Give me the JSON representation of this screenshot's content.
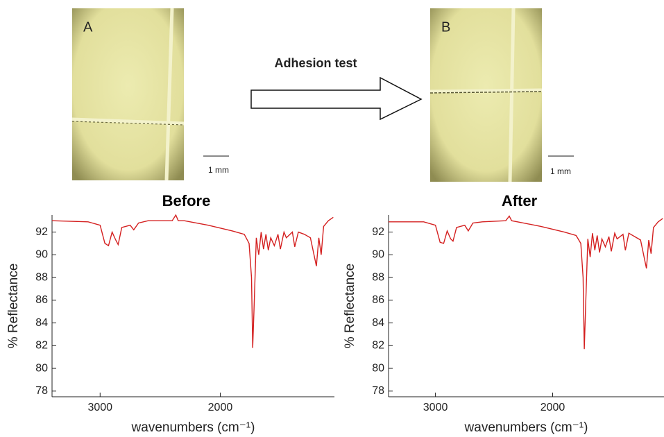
{
  "figure": {
    "panel_a_label": "A",
    "panel_b_label": "B",
    "scale_bar_a": "1 mm",
    "scale_bar_b": "1 mm",
    "arrow_label": "Adhesion test"
  },
  "chart_data": [
    {
      "type": "line",
      "title": "Before",
      "x_label": "wavenumbers (cm⁻¹)",
      "y_label": "% Reflectance",
      "x": [
        3400,
        3100,
        3000,
        2960,
        2930,
        2900,
        2870,
        2850,
        2820,
        2750,
        2720,
        2680,
        2600,
        2400,
        2370,
        2350,
        2300,
        2100,
        1900,
        1800,
        1760,
        1740,
        1730,
        1720,
        1700,
        1680,
        1660,
        1640,
        1620,
        1600,
        1580,
        1550,
        1520,
        1500,
        1470,
        1450,
        1400,
        1380,
        1350,
        1300,
        1250,
        1200,
        1180,
        1160,
        1140,
        1100,
        1060
      ],
      "series": [
        {
          "name": "Before",
          "color": "#d42020",
          "values": [
            93.0,
            92.9,
            92.6,
            91.0,
            90.8,
            92.0,
            91.3,
            90.9,
            92.4,
            92.6,
            92.2,
            92.8,
            93.0,
            93.0,
            93.5,
            93.0,
            93.0,
            92.6,
            92.1,
            91.8,
            91.0,
            88.0,
            81.8,
            85.0,
            91.5,
            90.0,
            92.0,
            90.5,
            91.8,
            90.4,
            91.5,
            90.8,
            91.8,
            90.5,
            92.0,
            91.5,
            92.0,
            90.7,
            92.0,
            91.8,
            91.5,
            89.0,
            91.5,
            90.0,
            92.5,
            93.0,
            93.3
          ]
        }
      ],
      "xlim": [
        3400,
        1050
      ],
      "ylim": [
        77.5,
        93.5
      ],
      "xticks": [
        3000,
        2000
      ],
      "yticks": [
        78,
        80,
        82,
        84,
        86,
        88,
        90,
        92
      ]
    },
    {
      "type": "line",
      "title": "After",
      "x_label": "wavenumbers (cm⁻¹)",
      "y_label": "% Reflectance",
      "x": [
        3400,
        3100,
        3000,
        2960,
        2930,
        2900,
        2870,
        2850,
        2820,
        2750,
        2720,
        2680,
        2600,
        2400,
        2370,
        2350,
        2300,
        2100,
        1900,
        1800,
        1760,
        1740,
        1730,
        1720,
        1700,
        1680,
        1660,
        1640,
        1620,
        1600,
        1580,
        1550,
        1520,
        1500,
        1470,
        1450,
        1400,
        1380,
        1350,
        1300,
        1250,
        1200,
        1180,
        1160,
        1140,
        1100,
        1060
      ],
      "series": [
        {
          "name": "After",
          "color": "#d42020",
          "values": [
            92.9,
            92.9,
            92.6,
            91.1,
            91.0,
            92.1,
            91.4,
            91.2,
            92.4,
            92.6,
            92.1,
            92.8,
            92.9,
            93.0,
            93.4,
            93.0,
            92.9,
            92.5,
            92.0,
            91.7,
            91.0,
            88.0,
            81.7,
            85.0,
            91.4,
            89.8,
            91.9,
            90.4,
            91.7,
            90.2,
            91.4,
            90.7,
            91.6,
            90.3,
            91.9,
            91.4,
            91.8,
            90.4,
            91.9,
            91.6,
            91.3,
            88.8,
            91.3,
            90.1,
            92.4,
            92.9,
            93.2
          ]
        }
      ],
      "xlim": [
        3400,
        1050
      ],
      "ylim": [
        77.5,
        93.5
      ],
      "xticks": [
        3000,
        2000
      ],
      "yticks": [
        78,
        80,
        82,
        84,
        86,
        88,
        90,
        92
      ]
    }
  ]
}
